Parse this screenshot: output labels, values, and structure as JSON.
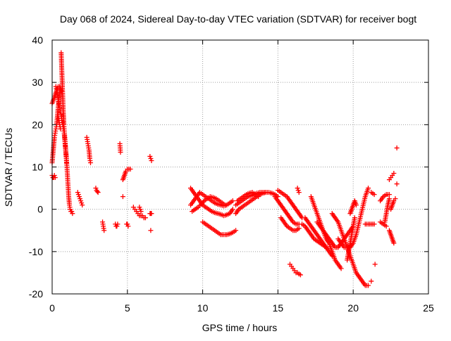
{
  "chart_data": {
    "type": "scatter",
    "title": "Day 068 of 2024, Sidereal Day-to-day VTEC variation (SDTVAR) for receiver bogt",
    "xlabel": "GPS time / hours",
    "ylabel": "SDTVAR / TECUs",
    "xlim": [
      0,
      25
    ],
    "ylim": [
      -20,
      40
    ],
    "xticks": [
      0,
      5,
      10,
      15,
      20,
      25
    ],
    "yticks": [
      -20,
      -10,
      0,
      10,
      20,
      30,
      40
    ],
    "grid": true,
    "marker": "+",
    "color": "#ff0000",
    "segments": [
      {
        "x": [
          0.0,
          0.05,
          0.1,
          0.15,
          0.2
        ],
        "y": [
          8,
          7.5,
          7.5,
          8,
          7.5
        ]
      },
      {
        "x": [
          0.0,
          0.05,
          0.1,
          0.15,
          0.2,
          0.25,
          0.3,
          0.35,
          0.4,
          0.45,
          0.5
        ],
        "y": [
          11,
          13,
          15,
          17,
          18,
          19,
          20,
          22,
          24,
          26,
          28
        ]
      },
      {
        "x": [
          0.0,
          0.1,
          0.2,
          0.3,
          0.4,
          0.5,
          0.6
        ],
        "y": [
          25,
          26,
          27,
          28,
          29,
          29,
          28
        ]
      },
      {
        "x": [
          0.25,
          0.3,
          0.35,
          0.4,
          0.45,
          0.5,
          0.55,
          0.6,
          0.65,
          0.7,
          0.75,
          0.8,
          0.85,
          0.9,
          0.95,
          1.0,
          1.05,
          1.1,
          1.15,
          1.2,
          1.25,
          1.3,
          1.35
        ],
        "y": [
          29,
          28,
          27,
          26,
          25,
          24,
          23,
          22,
          21,
          20,
          19,
          18,
          16,
          14,
          12,
          9,
          6,
          3,
          1,
          0,
          -0.5,
          -0.5,
          -1
        ]
      },
      {
        "x": [
          0.6,
          0.62,
          0.64,
          0.66,
          0.68,
          0.7,
          0.72,
          0.74,
          0.76,
          0.78,
          0.8,
          0.82,
          0.84,
          0.86,
          0.88,
          0.9,
          0.92,
          0.94,
          0.96
        ],
        "y": [
          37,
          35,
          33,
          31,
          29,
          27,
          25,
          23,
          21.5,
          20,
          19,
          18,
          17,
          16,
          15,
          14,
          13,
          12,
          11
        ]
      },
      {
        "x": [
          0.4,
          0.45,
          0.5,
          0.55
        ],
        "y": [
          22,
          21,
          20,
          19
        ]
      },
      {
        "x": [
          1.7,
          1.75,
          1.8,
          1.85,
          1.9,
          1.95,
          2.0
        ],
        "y": [
          4,
          3.5,
          3,
          2.5,
          2,
          1.5,
          1
        ]
      },
      {
        "x": [
          2.3,
          2.35,
          2.4,
          2.45,
          2.5,
          2.55
        ],
        "y": [
          17,
          16,
          15,
          14,
          12,
          11
        ]
      },
      {
        "x": [
          2.9,
          2.95,
          3.0,
          3.05
        ],
        "y": [
          5,
          4.5,
          4.2,
          4
        ]
      },
      {
        "x": [
          3.35,
          3.4,
          3.45
        ],
        "y": [
          -3,
          -4,
          -5
        ]
      },
      {
        "x": [
          4.2,
          4.25,
          4.3,
          4.35
        ],
        "y": [
          -3.5,
          -4,
          -4,
          -3.5
        ]
      },
      {
        "x": [
          4.5,
          4.52,
          4.54
        ],
        "y": [
          15.5,
          14.5,
          13.5
        ]
      },
      {
        "x": [
          4.7,
          4.8,
          4.9,
          5.0,
          5.1,
          5.2
        ],
        "y": [
          7,
          8,
          9,
          9.5,
          9.5,
          9.5
        ]
      },
      {
        "x": [
          4.7
        ],
        "y": [
          3
        ]
      },
      {
        "x": [
          4.95,
          5.0,
          5.05
        ],
        "y": [
          -3.5,
          -3.5,
          -4
        ]
      },
      {
        "x": [
          5.4,
          5.5,
          5.6,
          5.7,
          5.8,
          5.9,
          6.0,
          6.1,
          6.2
        ],
        "y": [
          0.5,
          0,
          -0.5,
          -1,
          -1.5,
          -1.5,
          -1.5,
          -2,
          -2
        ]
      },
      {
        "x": [
          5.8,
          5.85,
          5.9
        ],
        "y": [
          0.5,
          0,
          -0.5
        ]
      },
      {
        "x": [
          6.5,
          6.55,
          6.6
        ],
        "y": [
          12.5,
          12,
          11.5
        ]
      },
      {
        "x": [
          6.5,
          6.55,
          6.6
        ],
        "y": [
          -1,
          -1,
          -1
        ]
      },
      {
        "x": [
          6.55
        ],
        "y": [
          -5
        ]
      },
      {
        "x": [
          9.2,
          9.4,
          9.6,
          9.8,
          10.0,
          10.2,
          10.4,
          10.6,
          10.8,
          11.0,
          11.2,
          11.4,
          11.6,
          11.8,
          12.0
        ],
        "y": [
          5,
          4,
          3,
          2,
          1,
          0.5,
          0,
          -0.5,
          -0.8,
          -1,
          -1.2,
          -1.5,
          -1.3,
          -1,
          0
        ]
      },
      {
        "x": [
          9.2,
          9.4,
          9.6,
          9.8,
          10.0,
          10.2,
          10.4,
          10.6,
          10.8,
          11.0,
          11.2,
          11.4,
          11.6,
          11.8,
          12.0
        ],
        "y": [
          1,
          2,
          3,
          4,
          3.5,
          3,
          2.5,
          2,
          1.5,
          1.2,
          1,
          0.8,
          1,
          1.5,
          2
        ]
      },
      {
        "x": [
          9.3,
          9.5,
          9.7,
          9.9,
          10.1,
          10.3,
          10.5,
          10.7,
          10.9,
          11.1,
          11.3,
          11.5
        ],
        "y": [
          -0.5,
          0,
          0.5,
          1.2,
          2,
          2.5,
          3,
          2.8,
          2.5,
          2,
          1.5,
          1
        ]
      },
      {
        "x": [
          10.0,
          10.2,
          10.4,
          10.6,
          10.8,
          11.0,
          11.2,
          11.4,
          11.6,
          11.8,
          12.0,
          12.2
        ],
        "y": [
          -3,
          -3.5,
          -4,
          -4.5,
          -5,
          -5.5,
          -6,
          -6,
          -6,
          -5.8,
          -5.5,
          -5
        ]
      },
      {
        "x": [
          12.2,
          12.4,
          12.6,
          12.8,
          13.0,
          13.2,
          13.4,
          13.6,
          13.8,
          14.0,
          14.2,
          14.4,
          14.6,
          14.8,
          15.0
        ],
        "y": [
          -1,
          0,
          0.5,
          1,
          1.5,
          2,
          2.5,
          3,
          3.5,
          3.8,
          4,
          4,
          3.8,
          3.5,
          3
        ]
      },
      {
        "x": [
          12.2,
          12.4,
          12.6,
          12.8,
          13.0,
          13.2,
          13.4,
          13.6,
          13.8,
          14.0,
          14.2
        ],
        "y": [
          1,
          1.5,
          2,
          2.5,
          3,
          3.2,
          3.5,
          3.8,
          4,
          4,
          4
        ]
      },
      {
        "x": [
          12.3,
          12.5,
          12.7,
          12.9,
          13.1,
          13.3,
          13.5,
          13.7
        ],
        "y": [
          2,
          2.5,
          3,
          3.5,
          3.8,
          4,
          3.5,
          3
        ]
      },
      {
        "x": [
          14.8,
          15.0,
          15.2,
          15.4,
          15.6,
          15.8,
          16.0,
          16.2,
          16.4
        ],
        "y": [
          3,
          2,
          1,
          0,
          -1,
          -2,
          -3,
          -3.5,
          -3.5
        ]
      },
      {
        "x": [
          15.0,
          15.2,
          15.4,
          15.6,
          15.8,
          16.0,
          16.2,
          16.4,
          16.6
        ],
        "y": [
          4.5,
          4,
          3.5,
          3,
          2,
          1,
          0,
          -1,
          -2
        ]
      },
      {
        "x": [
          15.2,
          15.4,
          15.6,
          15.8,
          16.0,
          16.2,
          16.4
        ],
        "y": [
          -2,
          -3,
          -4,
          -4.5,
          -5,
          -5,
          -4.5
        ]
      },
      {
        "x": [
          15.8,
          15.9,
          16.0,
          16.1,
          16.2,
          16.3,
          16.4,
          16.5
        ],
        "y": [
          -13,
          -13.5,
          -14,
          -14.5,
          -15,
          -15,
          -15.3,
          -15.5
        ]
      },
      {
        "x": [
          16.3,
          16.35,
          16.4
        ],
        "y": [
          5,
          4.5,
          4
        ]
      },
      {
        "x": [
          16.6,
          16.8,
          17.0,
          17.2,
          17.4,
          17.6,
          17.8,
          18.0,
          18.2
        ],
        "y": [
          -3.5,
          -4,
          -5,
          -6,
          -7,
          -7.5,
          -8,
          -8.5,
          -9
        ]
      },
      {
        "x": [
          16.8,
          17.0,
          17.2,
          17.4,
          17.6,
          17.8,
          18.0,
          18.2,
          18.4,
          18.6
        ],
        "y": [
          -2,
          -3,
          -4,
          -5,
          -6,
          -7,
          -8,
          -9,
          -10,
          -11
        ]
      },
      {
        "x": [
          17.2,
          17.4,
          17.6,
          17.8,
          18.0,
          18.2,
          18.4,
          18.6,
          18.8,
          19.0,
          19.2
        ],
        "y": [
          3,
          1,
          -1,
          -3,
          -5,
          -7,
          -8,
          -10,
          -12,
          -13,
          -14
        ]
      },
      {
        "x": [
          17.6,
          17.8,
          18.0,
          18.2,
          18.4,
          18.6,
          18.8,
          19.0,
          19.2,
          19.4,
          19.6,
          19.8,
          20.0
        ],
        "y": [
          -3,
          -4,
          -5,
          -6,
          -7,
          -8,
          -9,
          -9,
          -8,
          -7,
          -6,
          -5,
          -4
        ]
      },
      {
        "x": [
          18.6,
          18.8,
          19.0,
          19.2,
          19.4,
          19.6,
          19.8,
          20.0,
          20.2,
          20.4,
          20.6,
          20.8,
          21.0
        ],
        "y": [
          -1,
          -2,
          -3,
          -5,
          -7,
          -9,
          -11,
          -13,
          -15,
          -16,
          -17,
          -18,
          -18
        ]
      },
      {
        "x": [
          19.0,
          19.2,
          19.4,
          19.6,
          19.8,
          20.0,
          20.2,
          20.4,
          20.6,
          20.8,
          21.0
        ],
        "y": [
          -7,
          -8,
          -9,
          -9,
          -9,
          -8,
          -6,
          -3,
          0,
          3,
          5
        ]
      },
      {
        "x": [
          19.6,
          19.7,
          19.8,
          19.9,
          20.0,
          20.1
        ],
        "y": [
          -12,
          -10,
          -8,
          -6,
          -4,
          -2
        ]
      },
      {
        "x": [
          19.8,
          19.9,
          20.0,
          20.1,
          20.2
        ],
        "y": [
          -1,
          0,
          1,
          2,
          1
        ]
      },
      {
        "x": [
          20.8,
          21.0,
          21.2,
          21.4
        ],
        "y": [
          -3.5,
          -3.5,
          -3.5,
          -3.5
        ]
      },
      {
        "x": [
          21.2
        ],
        "y": [
          -17
        ]
      },
      {
        "x": [
          21.2,
          21.4
        ],
        "y": [
          4,
          3.5
        ]
      },
      {
        "x": [
          21.45
        ],
        "y": [
          -13
        ]
      },
      {
        "x": [
          21.8,
          22.0,
          22.2
        ],
        "y": [
          -3,
          -3.5,
          -4
        ]
      },
      {
        "x": [
          21.8,
          22.0,
          22.2,
          22.4
        ],
        "y": [
          2,
          3,
          3.5,
          3.5
        ]
      },
      {
        "x": [
          22.1,
          22.2,
          22.3,
          22.4
        ],
        "y": [
          -3,
          -1,
          1,
          2.5
        ]
      },
      {
        "x": [
          22.4,
          22.5,
          22.6,
          22.7
        ],
        "y": [
          7,
          7.5,
          8,
          8.5
        ]
      },
      {
        "x": [
          22.4,
          22.5,
          22.6,
          22.7
        ],
        "y": [
          -5,
          -6,
          -7,
          -8
        ]
      },
      {
        "x": [
          22.5,
          22.6,
          22.7,
          22.8
        ],
        "y": [
          0,
          1,
          2,
          2.5
        ]
      },
      {
        "x": [
          22.9
        ],
        "y": [
          14.5
        ]
      },
      {
        "x": [
          22.9
        ],
        "y": [
          6
        ]
      }
    ]
  }
}
